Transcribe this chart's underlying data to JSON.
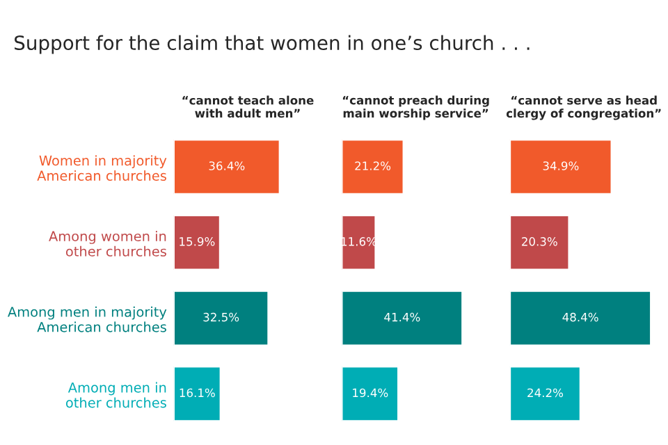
{
  "chart_data": [
    {
      "type": "bar",
      "orientation": "horizontal",
      "title": "“cannot teach alone\nwith adult men”",
      "categories": [
        "Women in majority\nAmerican churches",
        "Among women in\nother churches",
        "Among men in majority\nAmerican churches",
        "Among men in\nother churches"
      ],
      "values": [
        36.4,
        15.9,
        32.5,
        16.1
      ],
      "value_labels": [
        "36.4%",
        "15.9%",
        "32.5%",
        "16.1%"
      ],
      "colors": [
        "#f15a2b",
        "#c0494a",
        "#00807f",
        "#00adb5"
      ],
      "tick_labels": "y",
      "annotations": [
        "Support for the claim that women in one’s church . . ."
      ]
    },
    {
      "type": "bar",
      "orientation": "horizontal",
      "title": "“cannot preach during\nmain worship service”",
      "categories": [
        null,
        null,
        null,
        null
      ],
      "values": [
        21.2,
        11.6,
        41.4,
        19.4
      ],
      "value_labels": [
        "21.2%",
        "11.6%",
        "41.4%",
        "19.4%"
      ],
      "colors": [
        "#f15a2b",
        "#c0494a",
        "#00807f",
        "#00adb5"
      ],
      "tick_labels": false
    },
    {
      "type": "bar",
      "orientation": "horizontal",
      "title": "“cannot serve as head\nclergy of congregation”",
      "categories": [
        null,
        null,
        null,
        null
      ],
      "values": [
        34.9,
        20.3,
        48.4,
        24.2
      ],
      "value_labels": [
        "34.9%",
        "20.3%",
        "48.4%",
        "24.2%"
      ],
      "colors": [
        "#f15a2b",
        "#c0494a",
        "#00807f",
        "#00adb5"
      ],
      "tick_labels": false
    }
  ]
}
